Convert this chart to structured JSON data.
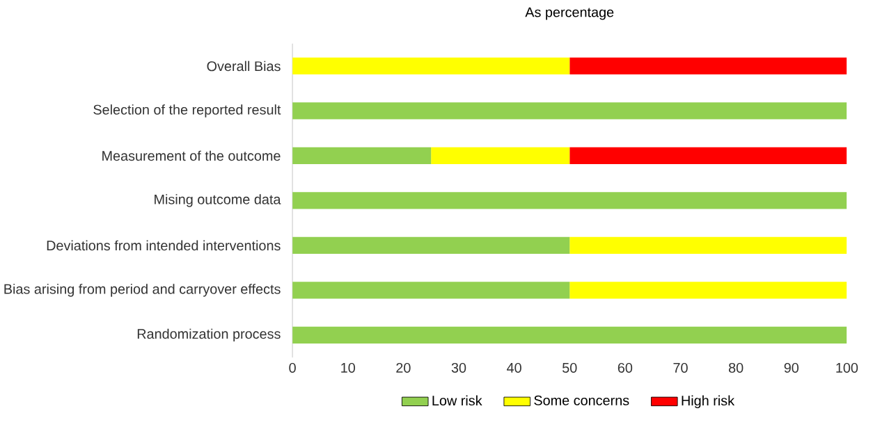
{
  "chart_data": {
    "type": "bar",
    "orientation": "horizontal",
    "stacked": true,
    "title": "As percentage",
    "categories": [
      "Overall Bias",
      "Selection of the reported result",
      "Measurement of the outcome",
      "Mising outcome data",
      "Deviations from intended interventions",
      "Bias arising from period and carryover effects",
      "Randomization process"
    ],
    "series": [
      {
        "name": "Low risk",
        "color": "#92d050",
        "values": [
          0,
          100,
          25,
          100,
          50,
          50,
          100
        ]
      },
      {
        "name": "Some concerns",
        "color": "#ffff00",
        "values": [
          50,
          0,
          25,
          0,
          50,
          50,
          0
        ]
      },
      {
        "name": "High risk",
        "color": "#ff0000",
        "values": [
          50,
          0,
          50,
          0,
          0,
          0,
          0
        ]
      }
    ],
    "xlim": [
      0,
      100
    ],
    "xticks": [
      0,
      10,
      20,
      30,
      40,
      50,
      60,
      70,
      80,
      90,
      100
    ],
    "grid": false,
    "legend": "bottom"
  }
}
